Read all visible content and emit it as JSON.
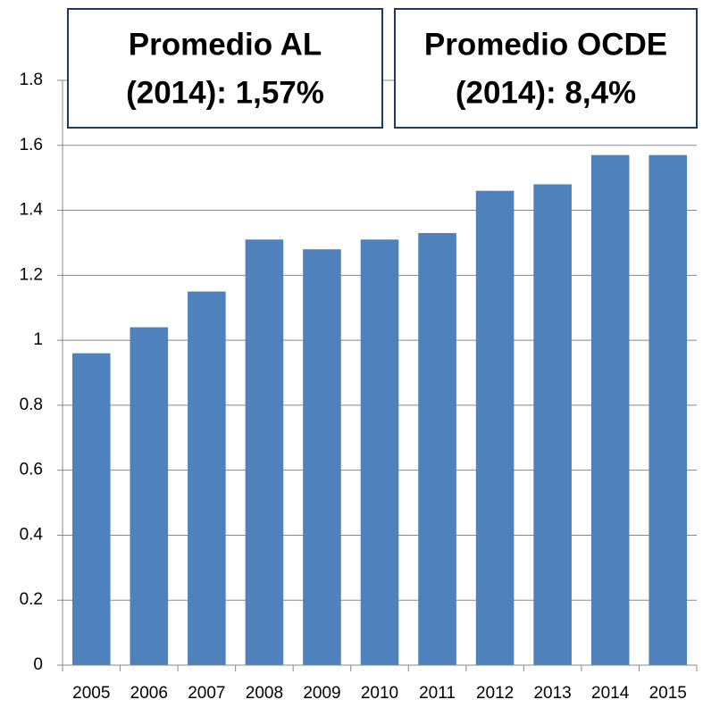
{
  "chart_data": {
    "type": "bar",
    "categories": [
      "2005",
      "2006",
      "2007",
      "2008",
      "2009",
      "2010",
      "2011",
      "2012",
      "2013",
      "2014",
      "2015"
    ],
    "values": [
      0.96,
      1.04,
      1.15,
      1.31,
      1.28,
      1.31,
      1.33,
      1.46,
      1.48,
      1.57,
      1.57
    ],
    "color": "#4f81bd",
    "ylim": [
      0,
      1.8
    ],
    "yticks": [
      0,
      0.2,
      0.4,
      0.6,
      0.8,
      1,
      1.2,
      1.4,
      1.6,
      1.8
    ],
    "grid": true,
    "annotations": [
      {
        "lines": [
          "Promedio AL",
          "(2014): 1,57%"
        ]
      },
      {
        "lines": [
          "Promedio OCDE",
          "(2014): 8,4%"
        ]
      }
    ]
  }
}
